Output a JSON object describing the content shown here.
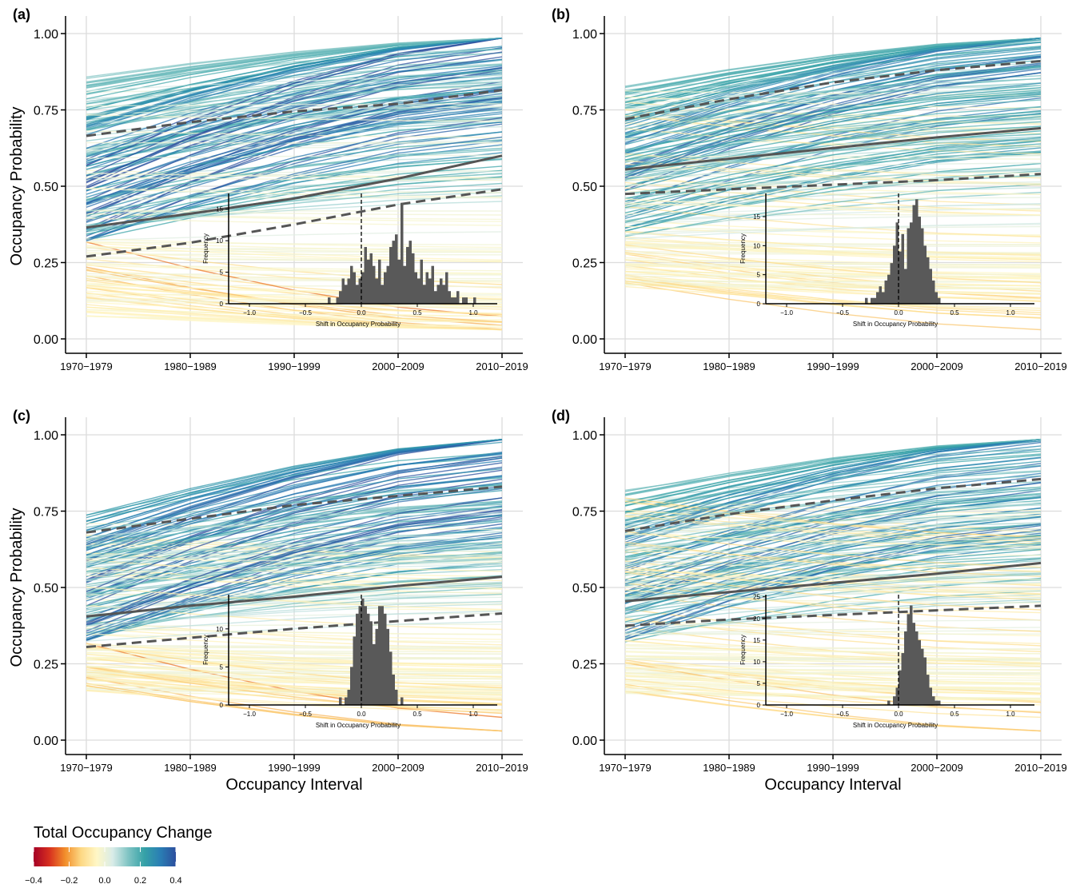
{
  "figure": {
    "legend": {
      "title": "Total Occupancy Change",
      "tick_labels": [
        "−0.4",
        "−0.2",
        "0.0",
        "0.2",
        "0.4"
      ],
      "range": [
        -0.4,
        0.4
      ],
      "colors": [
        "#a50026",
        "#d7301f",
        "#f28e2b",
        "#fdd884",
        "#fff7c6",
        "#d9ece8",
        "#7fc3c3",
        "#36a2a7",
        "#2a7fb4",
        "#2c4f9e"
      ]
    }
  },
  "chart_data": [
    {
      "panel_label": "(a)",
      "type": "line",
      "xlabel": "",
      "ylabel": "Occupancy Probability",
      "categories": [
        "1970−1979",
        "1980−1989",
        "1990−1999",
        "2000−2009",
        "2010−2019"
      ],
      "ylim": [
        0,
        1
      ],
      "yticks": [
        "0.00",
        "0.25",
        "0.50",
        "0.75",
        "1.00"
      ],
      "grid": true,
      "mean_line": [
        0.365,
        0.41,
        0.46,
        0.525,
        0.6
      ],
      "ci_upper": [
        0.665,
        0.71,
        0.745,
        0.77,
        0.815
      ],
      "ci_lower": [
        0.27,
        0.315,
        0.375,
        0.44,
        0.49
      ],
      "species_lines": {
        "count": 230,
        "start_range": [
          0.07,
          0.86
        ],
        "mean_change": 0.22
      },
      "inset": {
        "type": "bar",
        "xlabel": "Shift in Occupancy Probability",
        "ylabel": "Frequency",
        "xticks": [
          "−1.0",
          "−0.5",
          "0.0",
          "0.5",
          "1.0"
        ],
        "yticks": [
          "0",
          "5",
          "10",
          "15"
        ],
        "xlim": [
          -1.1,
          1.1
        ],
        "ylim": [
          0,
          17.5
        ],
        "bin_width": 0.025,
        "bin_start": -0.3,
        "counts": [
          1,
          0,
          0,
          1,
          2,
          4,
          3,
          4,
          6,
          5,
          3,
          4,
          5,
          9,
          7,
          8,
          6,
          4,
          7,
          3,
          5,
          6,
          9,
          10,
          11,
          7,
          16,
          6,
          9,
          10,
          8,
          5,
          4,
          7,
          3,
          5,
          4,
          6,
          2,
          3,
          4,
          3,
          5,
          2,
          1,
          1,
          2,
          0,
          1,
          1,
          0,
          0,
          1
        ],
        "zero_line": 0
      }
    },
    {
      "panel_label": "(b)",
      "type": "line",
      "xlabel": "",
      "ylabel": "",
      "categories": [
        "1970−1979",
        "1980−1989",
        "1990−1999",
        "2000−2009",
        "2010−2019"
      ],
      "ylim": [
        0,
        1
      ],
      "yticks": [
        "0.00",
        "0.25",
        "0.50",
        "0.75",
        "1.00"
      ],
      "grid": true,
      "mean_line": [
        0.555,
        0.59,
        0.625,
        0.66,
        0.69
      ],
      "ci_upper": [
        0.72,
        0.785,
        0.84,
        0.88,
        0.91
      ],
      "ci_lower": [
        0.475,
        0.49,
        0.505,
        0.52,
        0.54
      ],
      "species_lines": {
        "count": 230,
        "start_range": [
          0.17,
          0.83
        ],
        "mean_change": 0.14
      },
      "inset": {
        "type": "bar",
        "xlabel": "Shift in Occupancy Probability",
        "ylabel": "Frequency",
        "xticks": [
          "−1.0",
          "−0.5",
          "0.0",
          "0.5",
          "1.0"
        ],
        "yticks": [
          "0",
          "5",
          "10",
          "15"
        ],
        "xlim": [
          -1.1,
          1.1
        ],
        "ylim": [
          0,
          19
        ],
        "bin_width": 0.025,
        "bin_start": -0.3,
        "counts": [
          1,
          0,
          1,
          1,
          2,
          3,
          2,
          4,
          5,
          7,
          10,
          14,
          9,
          12,
          6,
          13,
          14,
          17,
          18,
          15,
          13,
          10,
          8,
          6,
          4,
          2,
          1
        ],
        "zero_line": 0
      }
    },
    {
      "panel_label": "(c)",
      "type": "line",
      "xlabel": "Occupancy Interval",
      "ylabel": "Occupancy Probability",
      "categories": [
        "1970−1979",
        "1980−1989",
        "1990−1999",
        "2000−2009",
        "2010−2019"
      ],
      "ylim": [
        0,
        1
      ],
      "yticks": [
        "0.00",
        "0.25",
        "0.50",
        "0.75",
        "1.00"
      ],
      "grid": true,
      "mean_line": [
        0.405,
        0.44,
        0.47,
        0.505,
        0.535
      ],
      "ci_upper": [
        0.68,
        0.725,
        0.77,
        0.8,
        0.83
      ],
      "ci_lower": [
        0.305,
        0.335,
        0.365,
        0.39,
        0.415
      ],
      "species_lines": {
        "count": 230,
        "start_range": [
          0.16,
          0.74
        ],
        "mean_change": 0.17
      },
      "inset": {
        "type": "bar",
        "xlabel": "Shift in Occupancy Probability",
        "ylabel": "Frequency",
        "xticks": [
          "−1.0",
          "−0.5",
          "0.0",
          "0.5",
          "1.0"
        ],
        "yticks": [
          "0",
          "5",
          "10"
        ],
        "xlim": [
          -1.1,
          1.1
        ],
        "ylim": [
          0,
          14.5
        ],
        "bin_width": 0.025,
        "bin_start": -0.2,
        "counts": [
          1,
          0,
          1,
          2,
          5,
          9,
          12,
          13,
          14,
          13,
          12,
          11,
          8,
          10,
          13,
          13,
          12,
          10,
          7,
          4,
          2,
          0,
          1
        ],
        "zero_line": 0
      }
    },
    {
      "panel_label": "(d)",
      "type": "line",
      "xlabel": "Occupancy Interval",
      "ylabel": "",
      "categories": [
        "1970−1979",
        "1980−1989",
        "1990−1999",
        "2000−2009",
        "2010−2019"
      ],
      "ylim": [
        0,
        1
      ],
      "yticks": [
        "0.00",
        "0.25",
        "0.50",
        "0.75",
        "1.00"
      ],
      "grid": true,
      "mean_line": [
        0.455,
        0.485,
        0.515,
        0.545,
        0.58
      ],
      "ci_upper": [
        0.685,
        0.74,
        0.785,
        0.825,
        0.855
      ],
      "ci_lower": [
        0.375,
        0.395,
        0.41,
        0.425,
        0.44
      ],
      "species_lines": {
        "count": 230,
        "start_range": [
          0.15,
          0.82
        ],
        "mean_change": 0.12
      },
      "inset": {
        "type": "bar",
        "xlabel": "Shift in Occupancy Probability",
        "ylabel": "Frequency",
        "xticks": [
          "−1.0",
          "−0.5",
          "0.0",
          "0.5",
          "1.0"
        ],
        "yticks": [
          "0",
          "5",
          "10",
          "15",
          "20",
          "25"
        ],
        "xlim": [
          -1.1,
          1.1
        ],
        "ylim": [
          0,
          25.5
        ],
        "bin_width": 0.025,
        "bin_start": -0.1,
        "counts": [
          1,
          0,
          2,
          4,
          8,
          12,
          17,
          21,
          23,
          19,
          17,
          15,
          13,
          11,
          7,
          4,
          2,
          1,
          1
        ],
        "zero_line": 0
      }
    }
  ]
}
